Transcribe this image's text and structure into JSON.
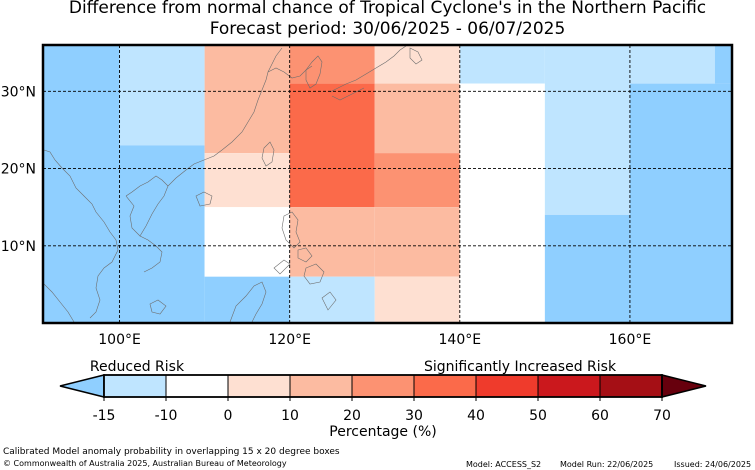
{
  "title": "Difference from normal chance of Tropical Cyclone's in the Northern Pacific",
  "subtitle": "Forecast period: 30/06/2025 - 06/07/2025",
  "map": {
    "region": "Northern Pacific",
    "lon_range": [
      91,
      172
    ],
    "lat_range": [
      0,
      36
    ],
    "x_ticks": [
      "100°E",
      "120°E",
      "140°E",
      "160°E"
    ],
    "x_tick_values": [
      100,
      120,
      140,
      160
    ],
    "y_ticks": [
      "30°N",
      "20°N",
      "10°N"
    ],
    "y_tick_values": [
      30,
      20,
      10
    ],
    "gridlines": true,
    "cells": [
      {
        "lon": [
          91,
          100
        ],
        "lat": [
          0,
          36
        ],
        "bin": 0
      },
      {
        "lon": [
          100,
          110
        ],
        "lat": [
          23,
          36
        ],
        "bin": 1
      },
      {
        "lon": [
          100,
          110
        ],
        "lat": [
          0,
          23
        ],
        "bin": 0
      },
      {
        "lon": [
          110,
          120
        ],
        "lat": [
          22,
          36
        ],
        "bin": 4
      },
      {
        "lon": [
          110,
          120
        ],
        "lat": [
          15,
          22
        ],
        "bin": 3
      },
      {
        "lon": [
          110,
          120
        ],
        "lat": [
          6,
          15
        ],
        "bin": 2
      },
      {
        "lon": [
          110,
          120
        ],
        "lat": [
          0,
          6
        ],
        "bin": 0
      },
      {
        "lon": [
          120,
          130
        ],
        "lat": [
          31,
          36
        ],
        "bin": 5
      },
      {
        "lon": [
          120,
          130
        ],
        "lat": [
          15,
          31
        ],
        "bin": 6
      },
      {
        "lon": [
          120,
          130
        ],
        "lat": [
          6,
          15
        ],
        "bin": 4
      },
      {
        "lon": [
          120,
          130
        ],
        "lat": [
          0,
          6
        ],
        "bin": 1
      },
      {
        "lon": [
          130,
          140
        ],
        "lat": [
          31,
          36
        ],
        "bin": 3
      },
      {
        "lon": [
          130,
          140
        ],
        "lat": [
          22,
          31
        ],
        "bin": 4
      },
      {
        "lon": [
          130,
          140
        ],
        "lat": [
          15,
          22
        ],
        "bin": 5
      },
      {
        "lon": [
          130,
          140
        ],
        "lat": [
          6,
          15
        ],
        "bin": 4
      },
      {
        "lon": [
          130,
          140
        ],
        "lat": [
          0,
          6
        ],
        "bin": 3
      },
      {
        "lon": [
          140,
          150
        ],
        "lat": [
          31,
          36
        ],
        "bin": 1
      },
      {
        "lon": [
          140,
          150
        ],
        "lat": [
          0,
          31
        ],
        "bin": 2
      },
      {
        "lon": [
          150,
          160
        ],
        "lat": [
          14,
          36
        ],
        "bin": 1
      },
      {
        "lon": [
          150,
          160
        ],
        "lat": [
          0,
          14
        ],
        "bin": 0
      },
      {
        "lon": [
          160,
          170
        ],
        "lat": [
          31,
          36
        ],
        "bin": 1
      },
      {
        "lon": [
          160,
          172
        ],
        "lat": [
          0,
          31
        ],
        "bin": 0
      },
      {
        "lon": [
          170,
          172
        ],
        "lat": [
          31,
          36
        ],
        "bin": 0
      }
    ]
  },
  "legend": {
    "left_label": "Reduced Risk",
    "right_label": "Significantly Increased Risk",
    "ticks": [
      "-15",
      "-10",
      "0",
      "10",
      "20",
      "30",
      "40",
      "50",
      "60",
      "70"
    ],
    "xlabel": "Percentage (%)",
    "colors": [
      "#8fcfff",
      "#bfe5ff",
      "#ffffff",
      "#fee0d2",
      "#fcbba1",
      "#fc9272",
      "#fb6a4a",
      "#ef3b2c",
      "#cb181d",
      "#a50f15",
      "#67000d"
    ]
  },
  "footer": {
    "note": "Calibrated Model anomaly probability in overlapping 15 x 20 degree boxes",
    "copyright": "© Commonwealth of Australia 2025, Australian Bureau of Meteorology",
    "model": "Model: ACCESS_S2",
    "model_run": "Model Run: 22/06/2025",
    "issued": "Issued: 24/06/2025"
  }
}
